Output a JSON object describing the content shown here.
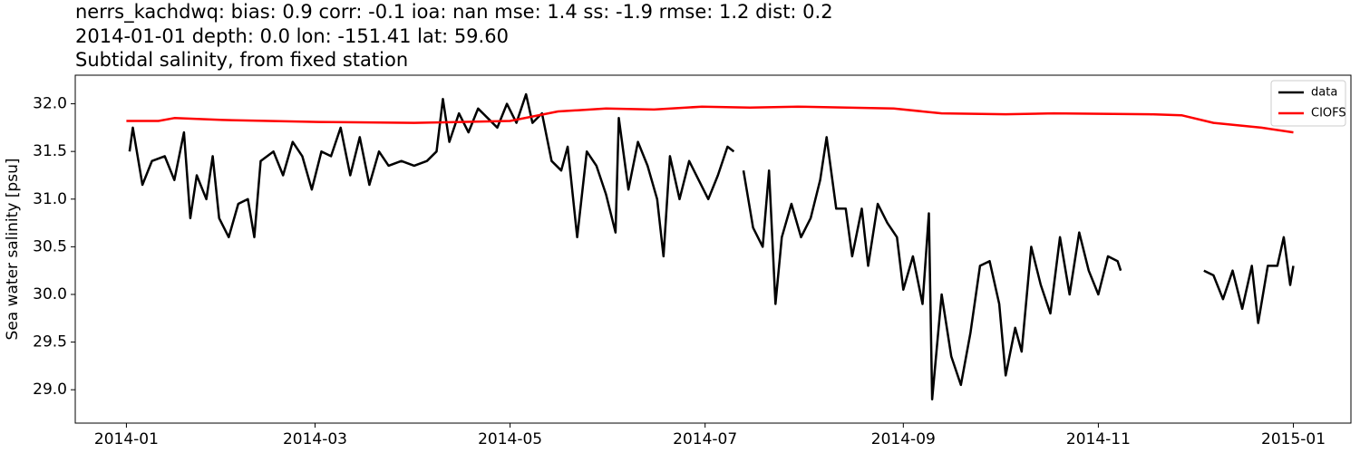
{
  "chart_data": {
    "type": "line",
    "title_lines": [
      "nerrs_kachdwq: bias: 0.9  corr: -0.1  ioa: nan  mse: 1.4  ss: -1.9  rmse: 1.2  dist: 0.2",
      "2014-01-01 depth: 0.0 lon: -151.41 lat: 59.60",
      "Subtidal salinity, from fixed station"
    ],
    "ylabel": "Sea water salinity [psu]",
    "xlim": [
      -16,
      383
    ],
    "xticks": [
      {
        "value": 0,
        "label": "2014-01"
      },
      {
        "value": 59,
        "label": "2014-03"
      },
      {
        "value": 120,
        "label": "2014-05"
      },
      {
        "value": 181,
        "label": "2014-07"
      },
      {
        "value": 243,
        "label": "2014-09"
      },
      {
        "value": 304,
        "label": "2014-11"
      },
      {
        "value": 365,
        "label": "2015-01"
      }
    ],
    "ylim": [
      28.65,
      32.3
    ],
    "yticks": [
      {
        "value": 29,
        "label": "29.0"
      },
      29.5,
      {
        "value": 30,
        "label": "30.0"
      },
      30.5,
      {
        "value": 31,
        "label": "31.0"
      },
      31.5,
      {
        "value": 32,
        "label": "32.0"
      }
    ],
    "legend": "upper right",
    "series": [
      {
        "name": "data",
        "color": "#000000",
        "x": [
          1,
          2,
          5,
          8,
          12,
          15,
          18,
          20,
          22,
          25,
          27,
          29,
          32,
          35,
          38,
          40,
          42,
          46,
          49,
          52,
          55,
          58,
          61,
          64,
          67,
          70,
          73,
          76,
          79,
          82,
          86,
          90,
          94,
          97,
          99,
          101,
          104,
          107,
          110,
          113,
          116,
          119,
          122,
          125,
          127,
          130,
          133,
          136,
          138,
          141,
          144,
          147,
          150,
          153,
          154,
          157,
          160,
          163,
          166,
          168,
          170,
          173,
          176,
          179,
          182,
          185,
          188,
          190,
          191.5,
          193,
          196,
          199,
          201,
          203,
          205,
          208,
          211,
          214,
          217,
          219,
          222,
          225,
          227,
          230,
          232,
          235,
          238,
          241,
          243,
          246,
          249,
          251,
          252,
          255,
          258,
          261,
          264,
          267,
          270,
          273,
          275,
          278,
          280,
          283,
          286,
          289,
          292,
          295,
          298,
          301,
          304,
          307,
          310,
          311,
          324,
          337,
          340,
          343,
          346,
          349,
          352,
          354,
          357,
          360,
          362,
          364,
          365
        ],
        "values": [
          31.5,
          31.75,
          31.15,
          31.4,
          31.45,
          31.2,
          31.7,
          30.8,
          31.25,
          31.0,
          31.45,
          30.8,
          30.6,
          30.95,
          31.0,
          30.6,
          31.4,
          31.5,
          31.25,
          31.6,
          31.45,
          31.1,
          31.5,
          31.45,
          31.75,
          31.25,
          31.65,
          31.15,
          31.5,
          31.35,
          31.4,
          31.35,
          31.4,
          31.5,
          32.05,
          31.6,
          31.9,
          31.7,
          31.95,
          31.85,
          31.75,
          32.0,
          31.8,
          32.1,
          31.8,
          31.9,
          31.4,
          31.3,
          31.55,
          30.6,
          31.5,
          31.35,
          31.05,
          30.65,
          31.85,
          31.1,
          31.6,
          31.35,
          31.0,
          30.4,
          31.45,
          31.0,
          31.4,
          31.2,
          31.0,
          31.25,
          31.55,
          31.5,
          null,
          31.3,
          30.7,
          30.5,
          31.3,
          29.9,
          30.6,
          30.95,
          30.6,
          30.8,
          31.2,
          31.65,
          30.9,
          30.9,
          30.4,
          30.9,
          30.3,
          30.95,
          30.75,
          30.6,
          30.05,
          30.4,
          29.9,
          30.85,
          28.9,
          30.0,
          29.35,
          29.05,
          29.6,
          30.3,
          30.35,
          29.9,
          29.15,
          29.65,
          29.4,
          30.5,
          30.1,
          29.8,
          30.6,
          30.0,
          30.65,
          30.25,
          30.0,
          30.4,
          30.35,
          30.25,
          null,
          30.25,
          30.2,
          29.95,
          30.25,
          29.85,
          30.3,
          29.7,
          30.3,
          30.3,
          30.6,
          30.1,
          30.3
        ]
      },
      {
        "name": "CIOFS",
        "color": "#ff0000",
        "x": [
          0,
          10,
          15,
          30,
          60,
          90,
          120,
          135,
          150,
          165,
          180,
          195,
          210,
          240,
          255,
          275,
          290,
          320,
          330,
          340,
          355,
          365
        ],
        "values": [
          31.82,
          31.82,
          31.85,
          31.83,
          31.81,
          31.8,
          31.82,
          31.92,
          31.95,
          31.94,
          31.97,
          31.96,
          31.97,
          31.95,
          31.9,
          31.89,
          31.9,
          31.89,
          31.88,
          31.8,
          31.75,
          31.7
        ]
      }
    ]
  }
}
